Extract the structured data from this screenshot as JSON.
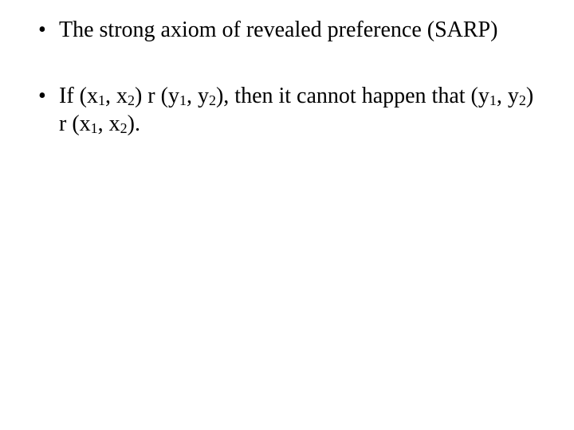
{
  "slide": {
    "bullets": [
      {
        "segments": [
          {
            "text": "The strong axiom of revealed preference (SARP)",
            "sub": false
          }
        ]
      },
      {
        "segments": [
          {
            "text": "If (x",
            "sub": false
          },
          {
            "text": "1",
            "sub": true
          },
          {
            "text": ", x",
            "sub": false
          },
          {
            "text": "2",
            "sub": true
          },
          {
            "text": ") r (y",
            "sub": false
          },
          {
            "text": "1",
            "sub": true
          },
          {
            "text": ", y",
            "sub": false
          },
          {
            "text": "2",
            "sub": true
          },
          {
            "text": "), then it cannot happen that (y",
            "sub": false
          },
          {
            "text": "1",
            "sub": true
          },
          {
            "text": ", y",
            "sub": false
          },
          {
            "text": "2",
            "sub": true
          },
          {
            "text": ") r (x",
            "sub": false
          },
          {
            "text": "1",
            "sub": true
          },
          {
            "text": ", x",
            "sub": false
          },
          {
            "text": "2",
            "sub": true
          },
          {
            "text": ").",
            "sub": false
          }
        ]
      }
    ],
    "text_color": "#000000",
    "background_color": "#ffffff",
    "font_family": "Times New Roman",
    "main_fontsize": 28,
    "sub_fontsize": 18
  }
}
